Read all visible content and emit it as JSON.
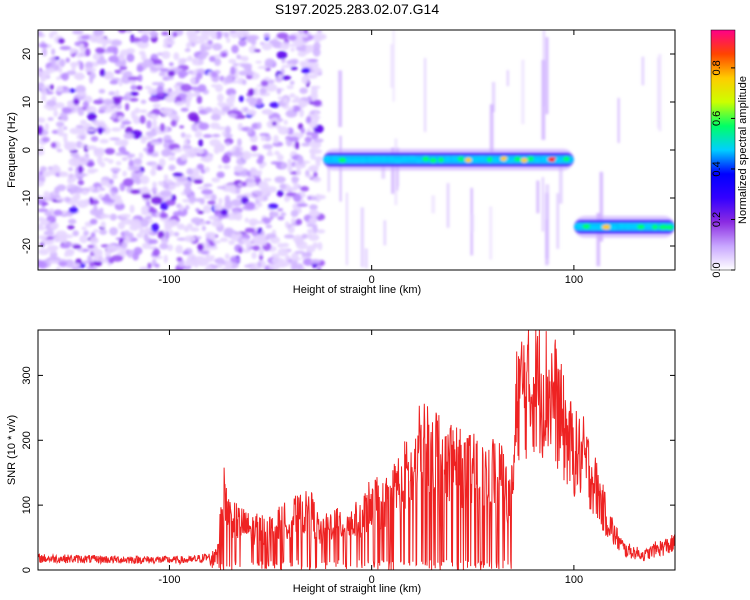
{
  "title": "S197.2025.283.02.07.G14",
  "chart_data": [
    {
      "type": "heatmap",
      "name": "spectrogram",
      "xlabel": "Height of straight line (km)",
      "ylabel": "Frequency (Hz)",
      "xlim": [
        -165,
        150
      ],
      "ylim": [
        -25,
        25
      ],
      "xticks": [
        -100,
        0,
        100
      ],
      "yticks": [
        -20,
        -10,
        0,
        10,
        20
      ],
      "xtick_labels": [
        "-100",
        "0",
        "100"
      ],
      "ytick_labels": [
        "-20",
        "-10",
        "0",
        "10",
        "20"
      ],
      "noise_region_x": [
        -165,
        -25
      ],
      "tracks": [
        {
          "name": "main-track",
          "x_start": -24,
          "x_end": 100,
          "frequency_hz": -2
        },
        {
          "name": "low-track",
          "x_start": 100,
          "x_end": 150,
          "frequency_hz": -16
        }
      ],
      "colorbar": {
        "label": "Normalized spectral amplitude",
        "ticks": [
          0.0,
          0.2,
          0.4,
          0.6,
          0.8
        ],
        "tick_labels": [
          "0.0",
          "0.2",
          "0.4",
          "0.6",
          "0.8"
        ],
        "range": [
          0,
          0.95
        ],
        "colors": [
          "#ffffff",
          "#c8a6ff",
          "#8b2be2",
          "#3300ff",
          "#0000ff",
          "#00cfff",
          "#00ff66",
          "#ccff00",
          "#ffcc00",
          "#ff4400",
          "#ff0088"
        ]
      }
    },
    {
      "type": "line",
      "name": "snr",
      "xlabel": "Height of straight line (km)",
      "ylabel": "SNR (10 * v/v)",
      "xlim": [
        -165,
        150
      ],
      "ylim": [
        0,
        370
      ],
      "xticks": [
        -100,
        0,
        100
      ],
      "yticks": [
        0,
        100,
        200,
        300
      ],
      "xtick_labels": [
        "-100",
        "0",
        "100"
      ],
      "ytick_labels": [
        "0",
        "100",
        "200",
        "300"
      ],
      "color": "#ee2222",
      "envelope_x": [
        -165,
        -130,
        -90,
        -80,
        -76,
        -73,
        -70,
        -60,
        -50,
        -40,
        -30,
        -25,
        -20,
        -10,
        -5,
        0,
        5,
        10,
        15,
        20,
        25,
        28,
        30,
        35,
        40,
        45,
        50,
        55,
        60,
        65,
        68,
        70,
        72,
        75,
        78,
        80,
        85,
        90,
        95,
        100,
        105,
        110,
        115,
        120,
        125,
        130,
        135,
        140,
        145,
        150
      ],
      "envelope_y": [
        20,
        18,
        17,
        22,
        40,
        130,
        90,
        70,
        70,
        90,
        100,
        60,
        80,
        80,
        90,
        120,
        110,
        130,
        160,
        165,
        220,
        215,
        215,
        200,
        190,
        170,
        170,
        160,
        170,
        160,
        120,
        140,
        300,
        310,
        300,
        320,
        310,
        300,
        240,
        200,
        190,
        150,
        100,
        60,
        35,
        30,
        25,
        35,
        40,
        45
      ]
    }
  ]
}
